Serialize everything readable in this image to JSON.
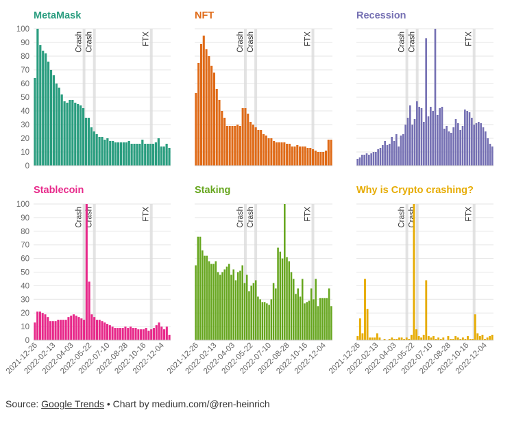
{
  "footer": {
    "prefix": "Source: ",
    "link_text": "Google Trends",
    "suffix": " • Chart by medium.com/@ren-heinrich"
  },
  "x_tick_labels": [
    "2021-12-26",
    "2022-02-13",
    "2022-04-03",
    "2022-05-22",
    "2022-07-10",
    "2022-08-28",
    "2022-10-16",
    "2022-12-04"
  ],
  "y_ticks": [
    0,
    10,
    20,
    30,
    40,
    50,
    60,
    70,
    80,
    90,
    100
  ],
  "annotations": [
    {
      "label": "Crash",
      "week": 19
    },
    {
      "label": "Crash",
      "week": 23
    },
    {
      "label": "FTX",
      "week": 45
    }
  ],
  "chart_data": [
    {
      "type": "bar",
      "title": "MetaMask",
      "color": "#2a9d7f",
      "ylim": [
        0,
        100
      ],
      "values": [
        64,
        100,
        88,
        84,
        82,
        76,
        70,
        66,
        60,
        57,
        52,
        47,
        46,
        48,
        48,
        46,
        45,
        44,
        42,
        35,
        35,
        28,
        25,
        23,
        21,
        21,
        19,
        20,
        18,
        18,
        17,
        17,
        17,
        17,
        17,
        18,
        16,
        16,
        16,
        16,
        19,
        16,
        16,
        16,
        16,
        17,
        20,
        14,
        14,
        16,
        13
      ]
    },
    {
      "type": "bar",
      "title": "NFT",
      "color": "#df6a17",
      "ylim": [
        0,
        100
      ],
      "values": [
        53,
        75,
        89,
        95,
        85,
        80,
        73,
        68,
        56,
        48,
        40,
        35,
        29,
        29,
        29,
        29,
        30,
        29,
        42,
        42,
        38,
        32,
        30,
        28,
        26,
        26,
        23,
        22,
        20,
        20,
        18,
        17,
        17,
        17,
        17,
        16,
        16,
        14,
        14,
        15,
        14,
        14,
        14,
        13,
        13,
        12,
        11,
        10,
        10,
        10,
        11,
        19,
        19
      ]
    },
    {
      "type": "bar",
      "title": "Recession",
      "color": "#7570b3",
      "ylim": [
        0,
        100
      ],
      "values": [
        5,
        6,
        8,
        8,
        9,
        8,
        9,
        10,
        10,
        12,
        13,
        15,
        18,
        15,
        16,
        21,
        18,
        23,
        14,
        22,
        23,
        30,
        35,
        44,
        30,
        34,
        47,
        43,
        42,
        32,
        93,
        36,
        43,
        40,
        100,
        37,
        42,
        43,
        27,
        29,
        25,
        24,
        28,
        34,
        31,
        26,
        29,
        41,
        40,
        39,
        35,
        30,
        31,
        32,
        31,
        28,
        25,
        20,
        16,
        14
      ]
    },
    {
      "type": "bar",
      "title": "Stablecoin",
      "color": "#e7298a",
      "ylim": [
        0,
        100
      ],
      "values": [
        13,
        21,
        21,
        20,
        19,
        17,
        14,
        14,
        14,
        15,
        15,
        15,
        15,
        17,
        18,
        19,
        18,
        17,
        16,
        15,
        100,
        43,
        19,
        17,
        15,
        15,
        14,
        13,
        12,
        11,
        10,
        9,
        9,
        9,
        9,
        10,
        9,
        10,
        9,
        9,
        8,
        8,
        8,
        9,
        7,
        8,
        9,
        11,
        13,
        10,
        8,
        10,
        4
      ]
    },
    {
      "type": "bar",
      "title": "Staking",
      "color": "#66a61e",
      "ylim": [
        0,
        100
      ],
      "values": [
        55,
        76,
        76,
        66,
        62,
        62,
        58,
        56,
        56,
        58,
        50,
        48,
        50,
        52,
        54,
        56,
        48,
        52,
        44,
        50,
        51,
        55,
        42,
        48,
        36,
        40,
        42,
        44,
        32,
        30,
        28,
        28,
        27,
        26,
        30,
        42,
        38,
        68,
        65,
        60,
        100,
        61,
        58,
        50,
        45,
        34,
        38,
        32,
        45,
        27,
        28,
        29,
        38,
        30,
        45,
        25,
        31,
        31,
        31,
        31,
        38,
        25
      ]
    },
    {
      "type": "bar",
      "title": "Why is Crypto crashing?",
      "color": "#e6ab02",
      "ylim": [
        0,
        100
      ],
      "values": [
        3,
        16,
        5,
        45,
        23,
        2,
        2,
        2,
        5,
        2,
        0,
        1,
        0,
        1,
        2,
        1,
        1,
        2,
        2,
        1,
        2,
        1,
        4,
        100,
        8,
        3,
        2,
        4,
        44,
        3,
        2,
        3,
        1,
        2,
        1,
        2,
        0,
        3,
        1,
        1,
        3,
        2,
        1,
        2,
        1,
        3,
        1,
        1,
        19,
        5,
        3,
        4,
        1,
        2,
        3,
        4
      ]
    }
  ]
}
